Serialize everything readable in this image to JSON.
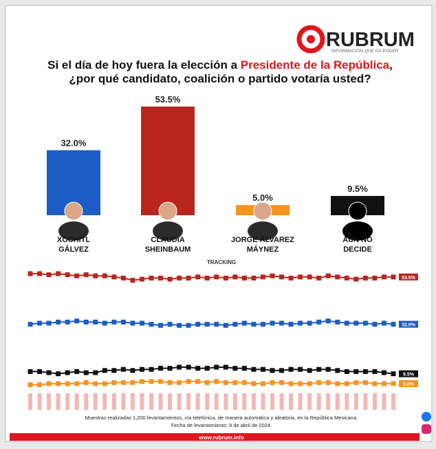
{
  "logo": {
    "name": "RUBRUM",
    "tagline": "INFORMACIÓN QUE DA PODER"
  },
  "title": {
    "before": "Si el día de hoy fuera la elección a ",
    "highlight": "Presidente de la República",
    "after": ",",
    "line2": "¿por qué candidato, coalición o partido votaría usted?"
  },
  "chart_data": [
    {
      "type": "bar",
      "categories": [
        "XÓCHITL GÁLVEZ",
        "CLAUDIA SHEINBAUM",
        "JORGE ÁLVAREZ MÁYNEZ",
        "AÚN NO DECIDE"
      ],
      "values": [
        32.0,
        53.5,
        5.0,
        9.5
      ],
      "value_labels": [
        "32.0%",
        "53.5%",
        "5.0%",
        "9.5%"
      ],
      "colors": [
        "#1c5cc4",
        "#b8261d",
        "#f7931e",
        "#111111"
      ]
    },
    {
      "type": "line",
      "title": "TRACKING",
      "series": [
        {
          "color": "#b8261d",
          "end_label": "53.5%",
          "values": [
            55,
            55,
            54.5,
            55,
            54.5,
            54,
            54.5,
            54,
            54,
            53.5,
            53,
            52,
            52.5,
            53,
            53,
            52.5,
            53,
            53,
            53.5,
            53,
            53.5,
            53,
            53.5,
            53,
            53,
            53.5,
            54,
            53.5,
            53,
            53.5,
            53.5,
            53,
            54,
            53.5,
            53,
            52.5,
            53,
            53,
            53.5,
            53.5
          ]
        },
        {
          "color": "#1c5cc4",
          "end_label": "32.0%",
          "values": [
            32,
            32.5,
            32.5,
            33,
            33,
            33.5,
            33,
            33,
            32.5,
            33,
            33,
            32.5,
            32.5,
            32,
            31.5,
            32,
            31.5,
            31.5,
            32,
            32,
            32,
            31.5,
            32,
            32.5,
            32,
            32,
            32.5,
            32.5,
            32,
            32.5,
            32.5,
            33,
            33.5,
            33,
            32.5,
            32.5,
            32.5,
            32,
            32.5,
            32
          ]
        },
        {
          "color": "#111111",
          "end_label": "9.5%",
          "values": [
            10.5,
            10.5,
            10,
            9.5,
            10,
            10.5,
            10,
            10,
            11,
            11,
            11.5,
            11,
            11.5,
            11.5,
            12,
            12,
            12.5,
            12.5,
            12,
            12,
            12.5,
            12.5,
            12,
            12,
            11.5,
            11.5,
            11,
            11,
            11.5,
            11.5,
            11,
            11.5,
            11.5,
            11,
            10.5,
            10.5,
            10.5,
            10.5,
            10,
            9.5
          ]
        },
        {
          "color": "#f7931e",
          "end_label": "5.0%",
          "values": [
            4.5,
            4.5,
            5,
            5,
            5,
            5,
            5.5,
            5,
            5,
            5.5,
            5.5,
            5.5,
            6,
            6,
            6,
            5.5,
            5.5,
            6,
            6,
            5.5,
            6,
            5.5,
            5.5,
            5.5,
            5,
            5,
            5.5,
            5.5,
            5,
            5,
            5,
            5.5,
            5.5,
            5,
            5,
            5.5,
            5.5,
            5,
            5,
            5
          ]
        }
      ]
    }
  ],
  "footer": {
    "note": "Muestras realizadas 1,200 levantamientos, vía telefónica, de manera automática y aleatoria, en la República Mexicana.",
    "date": "Fecha de levantamiento: 9 de abril de 2024.",
    "url": "www.rubrum.info"
  }
}
